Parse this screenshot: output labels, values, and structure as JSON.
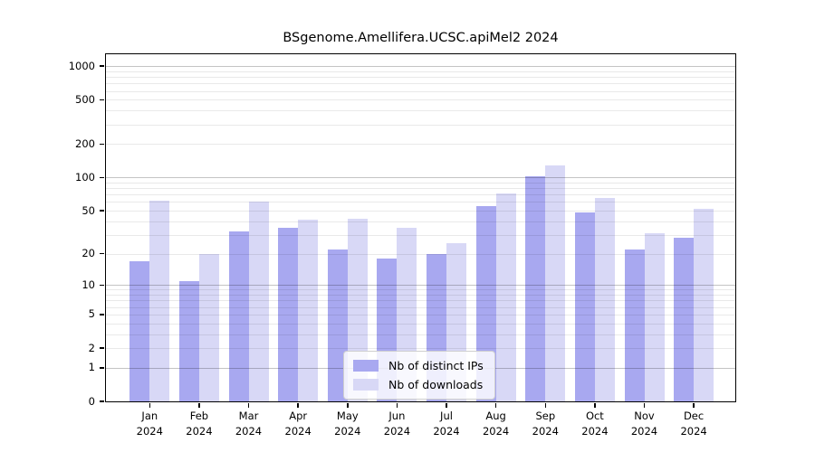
{
  "title": "BSgenome.Amellifera.UCSC.apiMel2 2024",
  "colors": {
    "distinct_ips_bar": "#a8a8f0",
    "downloads_bar": "#d8d8f6",
    "axis": "#000000"
  },
  "legend": {
    "items": [
      {
        "label": "Nb of distinct IPs",
        "series": "distinct_ips"
      },
      {
        "label": "Nb of downloads",
        "series": "downloads"
      }
    ]
  },
  "chart_data": {
    "type": "bar",
    "title": "BSgenome.Amellifera.UCSC.apiMel2 2024",
    "categories": [
      "Jan",
      "Feb",
      "Mar",
      "Apr",
      "May",
      "Jun",
      "Jul",
      "Aug",
      "Sep",
      "Oct",
      "Nov",
      "Dec"
    ],
    "category_year": "2024",
    "series": [
      {
        "name": "Nb of distinct IPs",
        "color": "#a8a8f0",
        "values": [
          17,
          11,
          32,
          35,
          22,
          18,
          20,
          55,
          103,
          48,
          22,
          28
        ]
      },
      {
        "name": "Nb of downloads",
        "color": "#d8d8f6",
        "values": [
          62,
          20,
          61,
          41,
          42,
          35,
          25,
          72,
          128,
          65,
          31,
          52
        ]
      }
    ],
    "xlabel": "",
    "ylabel": "",
    "yscale": "log1p",
    "ylim": [
      0,
      1280
    ],
    "yticks": [
      0,
      1,
      2,
      5,
      10,
      20,
      50,
      100,
      200,
      500,
      1000
    ],
    "grid": {
      "major_at": [
        1,
        10,
        100,
        1000
      ],
      "minor": "2-9 per decade",
      "shown": true
    },
    "legend_position": "lower center inside plot"
  }
}
